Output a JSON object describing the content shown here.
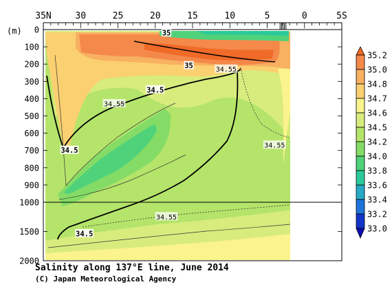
{
  "chart_data": {
    "type": "heatmap",
    "title": "Salinity along 137°E line, June 2014",
    "credit": "(C) Japan Meteorological Agency",
    "ylabel": "(m)",
    "x_ticks": [
      "35N",
      "30",
      "25",
      "20",
      "15",
      "10",
      "5",
      "0",
      "5S"
    ],
    "x_tick_values": [
      35,
      30,
      25,
      20,
      15,
      10,
      5,
      0,
      -5
    ],
    "xlim": [
      35,
      -5
    ],
    "y_ticks_upper": [
      "0",
      "100",
      "200",
      "300",
      "400",
      "500",
      "600",
      "700",
      "800",
      "900",
      "1000"
    ],
    "y_ticks_upper_values": [
      0,
      100,
      200,
      300,
      400,
      500,
      600,
      700,
      800,
      900,
      1000
    ],
    "y_ticks_lower": [
      "1500",
      "2000"
    ],
    "y_ticks_lower_values": [
      1500,
      2000
    ],
    "ylim": [
      0,
      2000
    ],
    "y_axis_break": 1000,
    "data_coverage_lat": [
      34,
      2
    ],
    "colorbar": {
      "levels": [
        "35.2",
        "35.0",
        "34.8",
        "34.7",
        "34.6",
        "34.5",
        "34.2",
        "34.0",
        "33.8",
        "33.6",
        "33.4",
        "33.2",
        "33.0"
      ],
      "colors": [
        "#f06a28",
        "#f4894a",
        "#f8b061",
        "#fbd070",
        "#fbf38c",
        "#d7ec7d",
        "#b4e46a",
        "#84dc66",
        "#4fd27a",
        "#2bc99a",
        "#28a9c6",
        "#1e74da",
        "#1434c8",
        "#0c0cb4"
      ]
    },
    "contour_labels": [
      {
        "text": "35",
        "lat": 18.5,
        "depth": 20
      },
      {
        "text": "35",
        "lat": 15.5,
        "depth": 210
      },
      {
        "text": "34.55",
        "lat": 10.5,
        "depth": 230
      },
      {
        "text": "34.5",
        "lat": 20,
        "depth": 350
      },
      {
        "text": "34.55",
        "lat": 25.5,
        "depth": 430
      },
      {
        "text": "34.5",
        "lat": 31.5,
        "depth": 700
      },
      {
        "text": "34.55",
        "lat": 4,
        "depth": 670
      },
      {
        "text": "34.55",
        "lat": 18.5,
        "depth": 1250
      },
      {
        "text": "34.5",
        "lat": 29.5,
        "depth": 1540
      }
    ]
  }
}
